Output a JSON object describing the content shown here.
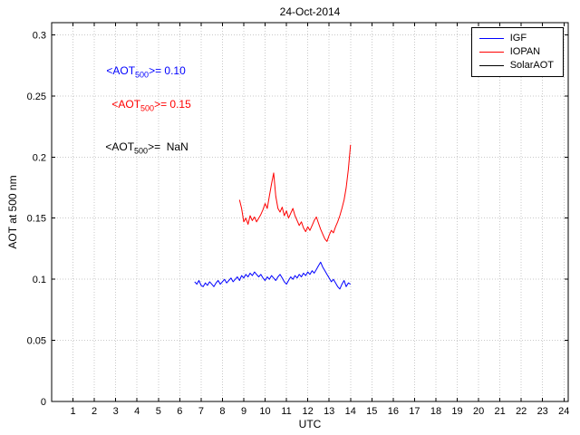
{
  "title": "24-Oct-2014",
  "chart_data": {
    "type": "line",
    "title": "24-Oct-2014",
    "xlabel": "UTC",
    "ylabel": "AOT at 500 nm",
    "xlim": [
      0,
      24.2
    ],
    "ylim": [
      0,
      0.31
    ],
    "grid": true,
    "legend_position": "top-right",
    "x_ticks": [
      1,
      2,
      3,
      4,
      5,
      6,
      7,
      8,
      9,
      10,
      11,
      12,
      13,
      14,
      15,
      16,
      17,
      18,
      19,
      20,
      21,
      22,
      23,
      24
    ],
    "y_ticks": [
      0,
      0.05,
      0.1,
      0.15,
      0.2,
      0.25,
      0.3
    ],
    "y_tick_labels": [
      "0",
      "0.05",
      "0.1",
      "0.15",
      "0.2",
      "0.25",
      "0.3"
    ],
    "series": [
      {
        "name": "IGF",
        "color": "#0000ff",
        "mean_aot500": "0.10",
        "points": [
          [
            6.7,
            0.098
          ],
          [
            6.8,
            0.096
          ],
          [
            6.9,
            0.099
          ],
          [
            7.0,
            0.095
          ],
          [
            7.1,
            0.094
          ],
          [
            7.2,
            0.097
          ],
          [
            7.3,
            0.095
          ],
          [
            7.4,
            0.098
          ],
          [
            7.5,
            0.096
          ],
          [
            7.6,
            0.094
          ],
          [
            7.7,
            0.097
          ],
          [
            7.8,
            0.099
          ],
          [
            7.9,
            0.096
          ],
          [
            8.0,
            0.098
          ],
          [
            8.1,
            0.1
          ],
          [
            8.2,
            0.097
          ],
          [
            8.3,
            0.099
          ],
          [
            8.4,
            0.101
          ],
          [
            8.5,
            0.098
          ],
          [
            8.6,
            0.1
          ],
          [
            8.7,
            0.102
          ],
          [
            8.8,
            0.099
          ],
          [
            8.9,
            0.103
          ],
          [
            9.0,
            0.101
          ],
          [
            9.1,
            0.104
          ],
          [
            9.2,
            0.102
          ],
          [
            9.3,
            0.105
          ],
          [
            9.4,
            0.103
          ],
          [
            9.5,
            0.106
          ],
          [
            9.6,
            0.104
          ],
          [
            9.7,
            0.102
          ],
          [
            9.8,
            0.104
          ],
          [
            9.9,
            0.101
          ],
          [
            10.0,
            0.099
          ],
          [
            10.1,
            0.102
          ],
          [
            10.2,
            0.1
          ],
          [
            10.3,
            0.103
          ],
          [
            10.4,
            0.101
          ],
          [
            10.5,
            0.099
          ],
          [
            10.6,
            0.102
          ],
          [
            10.7,
            0.104
          ],
          [
            10.8,
            0.101
          ],
          [
            10.9,
            0.098
          ],
          [
            11.0,
            0.096
          ],
          [
            11.1,
            0.099
          ],
          [
            11.2,
            0.102
          ],
          [
            11.3,
            0.1
          ],
          [
            11.4,
            0.103
          ],
          [
            11.5,
            0.101
          ],
          [
            11.6,
            0.104
          ],
          [
            11.7,
            0.102
          ],
          [
            11.8,
            0.105
          ],
          [
            11.9,
            0.103
          ],
          [
            12.0,
            0.106
          ],
          [
            12.1,
            0.104
          ],
          [
            12.2,
            0.107
          ],
          [
            12.3,
            0.105
          ],
          [
            12.4,
            0.108
          ],
          [
            12.5,
            0.111
          ],
          [
            12.6,
            0.114
          ],
          [
            12.7,
            0.11
          ],
          [
            12.8,
            0.107
          ],
          [
            12.9,
            0.104
          ],
          [
            13.0,
            0.101
          ],
          [
            13.1,
            0.098
          ],
          [
            13.2,
            0.1
          ],
          [
            13.3,
            0.097
          ],
          [
            13.4,
            0.094
          ],
          [
            13.5,
            0.092
          ],
          [
            13.6,
            0.096
          ],
          [
            13.7,
            0.099
          ],
          [
            13.8,
            0.094
          ],
          [
            13.9,
            0.097
          ],
          [
            14.0,
            0.096
          ]
        ]
      },
      {
        "name": "IOPAN",
        "color": "#ff0000",
        "mean_aot500": "0.15",
        "points": [
          [
            8.8,
            0.165
          ],
          [
            8.9,
            0.158
          ],
          [
            9.0,
            0.147
          ],
          [
            9.1,
            0.15
          ],
          [
            9.2,
            0.145
          ],
          [
            9.3,
            0.152
          ],
          [
            9.4,
            0.148
          ],
          [
            9.5,
            0.151
          ],
          [
            9.6,
            0.147
          ],
          [
            9.7,
            0.15
          ],
          [
            9.8,
            0.153
          ],
          [
            9.9,
            0.157
          ],
          [
            10.0,
            0.162
          ],
          [
            10.1,
            0.158
          ],
          [
            10.2,
            0.168
          ],
          [
            10.3,
            0.178
          ],
          [
            10.4,
            0.187
          ],
          [
            10.5,
            0.168
          ],
          [
            10.6,
            0.158
          ],
          [
            10.7,
            0.155
          ],
          [
            10.8,
            0.159
          ],
          [
            10.9,
            0.152
          ],
          [
            11.0,
            0.156
          ],
          [
            11.1,
            0.15
          ],
          [
            11.2,
            0.154
          ],
          [
            11.3,
            0.158
          ],
          [
            11.4,
            0.152
          ],
          [
            11.5,
            0.148
          ],
          [
            11.6,
            0.144
          ],
          [
            11.7,
            0.147
          ],
          [
            11.8,
            0.142
          ],
          [
            11.9,
            0.139
          ],
          [
            12.0,
            0.143
          ],
          [
            12.1,
            0.14
          ],
          [
            12.2,
            0.144
          ],
          [
            12.3,
            0.148
          ],
          [
            12.4,
            0.151
          ],
          [
            12.5,
            0.146
          ],
          [
            12.6,
            0.141
          ],
          [
            12.7,
            0.137
          ],
          [
            12.8,
            0.133
          ],
          [
            12.9,
            0.131
          ],
          [
            13.0,
            0.136
          ],
          [
            13.1,
            0.14
          ],
          [
            13.2,
            0.138
          ],
          [
            13.3,
            0.143
          ],
          [
            13.4,
            0.147
          ],
          [
            13.5,
            0.152
          ],
          [
            13.6,
            0.158
          ],
          [
            13.7,
            0.165
          ],
          [
            13.8,
            0.175
          ],
          [
            13.9,
            0.19
          ],
          [
            14.0,
            0.21
          ]
        ]
      },
      {
        "name": "SolarAOT",
        "color": "#000000",
        "mean_aot500": "NaN",
        "points": []
      }
    ]
  },
  "annotations": [
    {
      "prefix": "<AOT",
      "sub": "500",
      "suffix": ">= 0.10",
      "color": "#0000ff"
    },
    {
      "prefix": "<AOT",
      "sub": "500",
      "suffix": ">= 0.15",
      "color": "#ff0000"
    },
    {
      "prefix": "<AOT",
      "sub": "500",
      "suffix": ">=  NaN",
      "color": "#000000"
    }
  ]
}
